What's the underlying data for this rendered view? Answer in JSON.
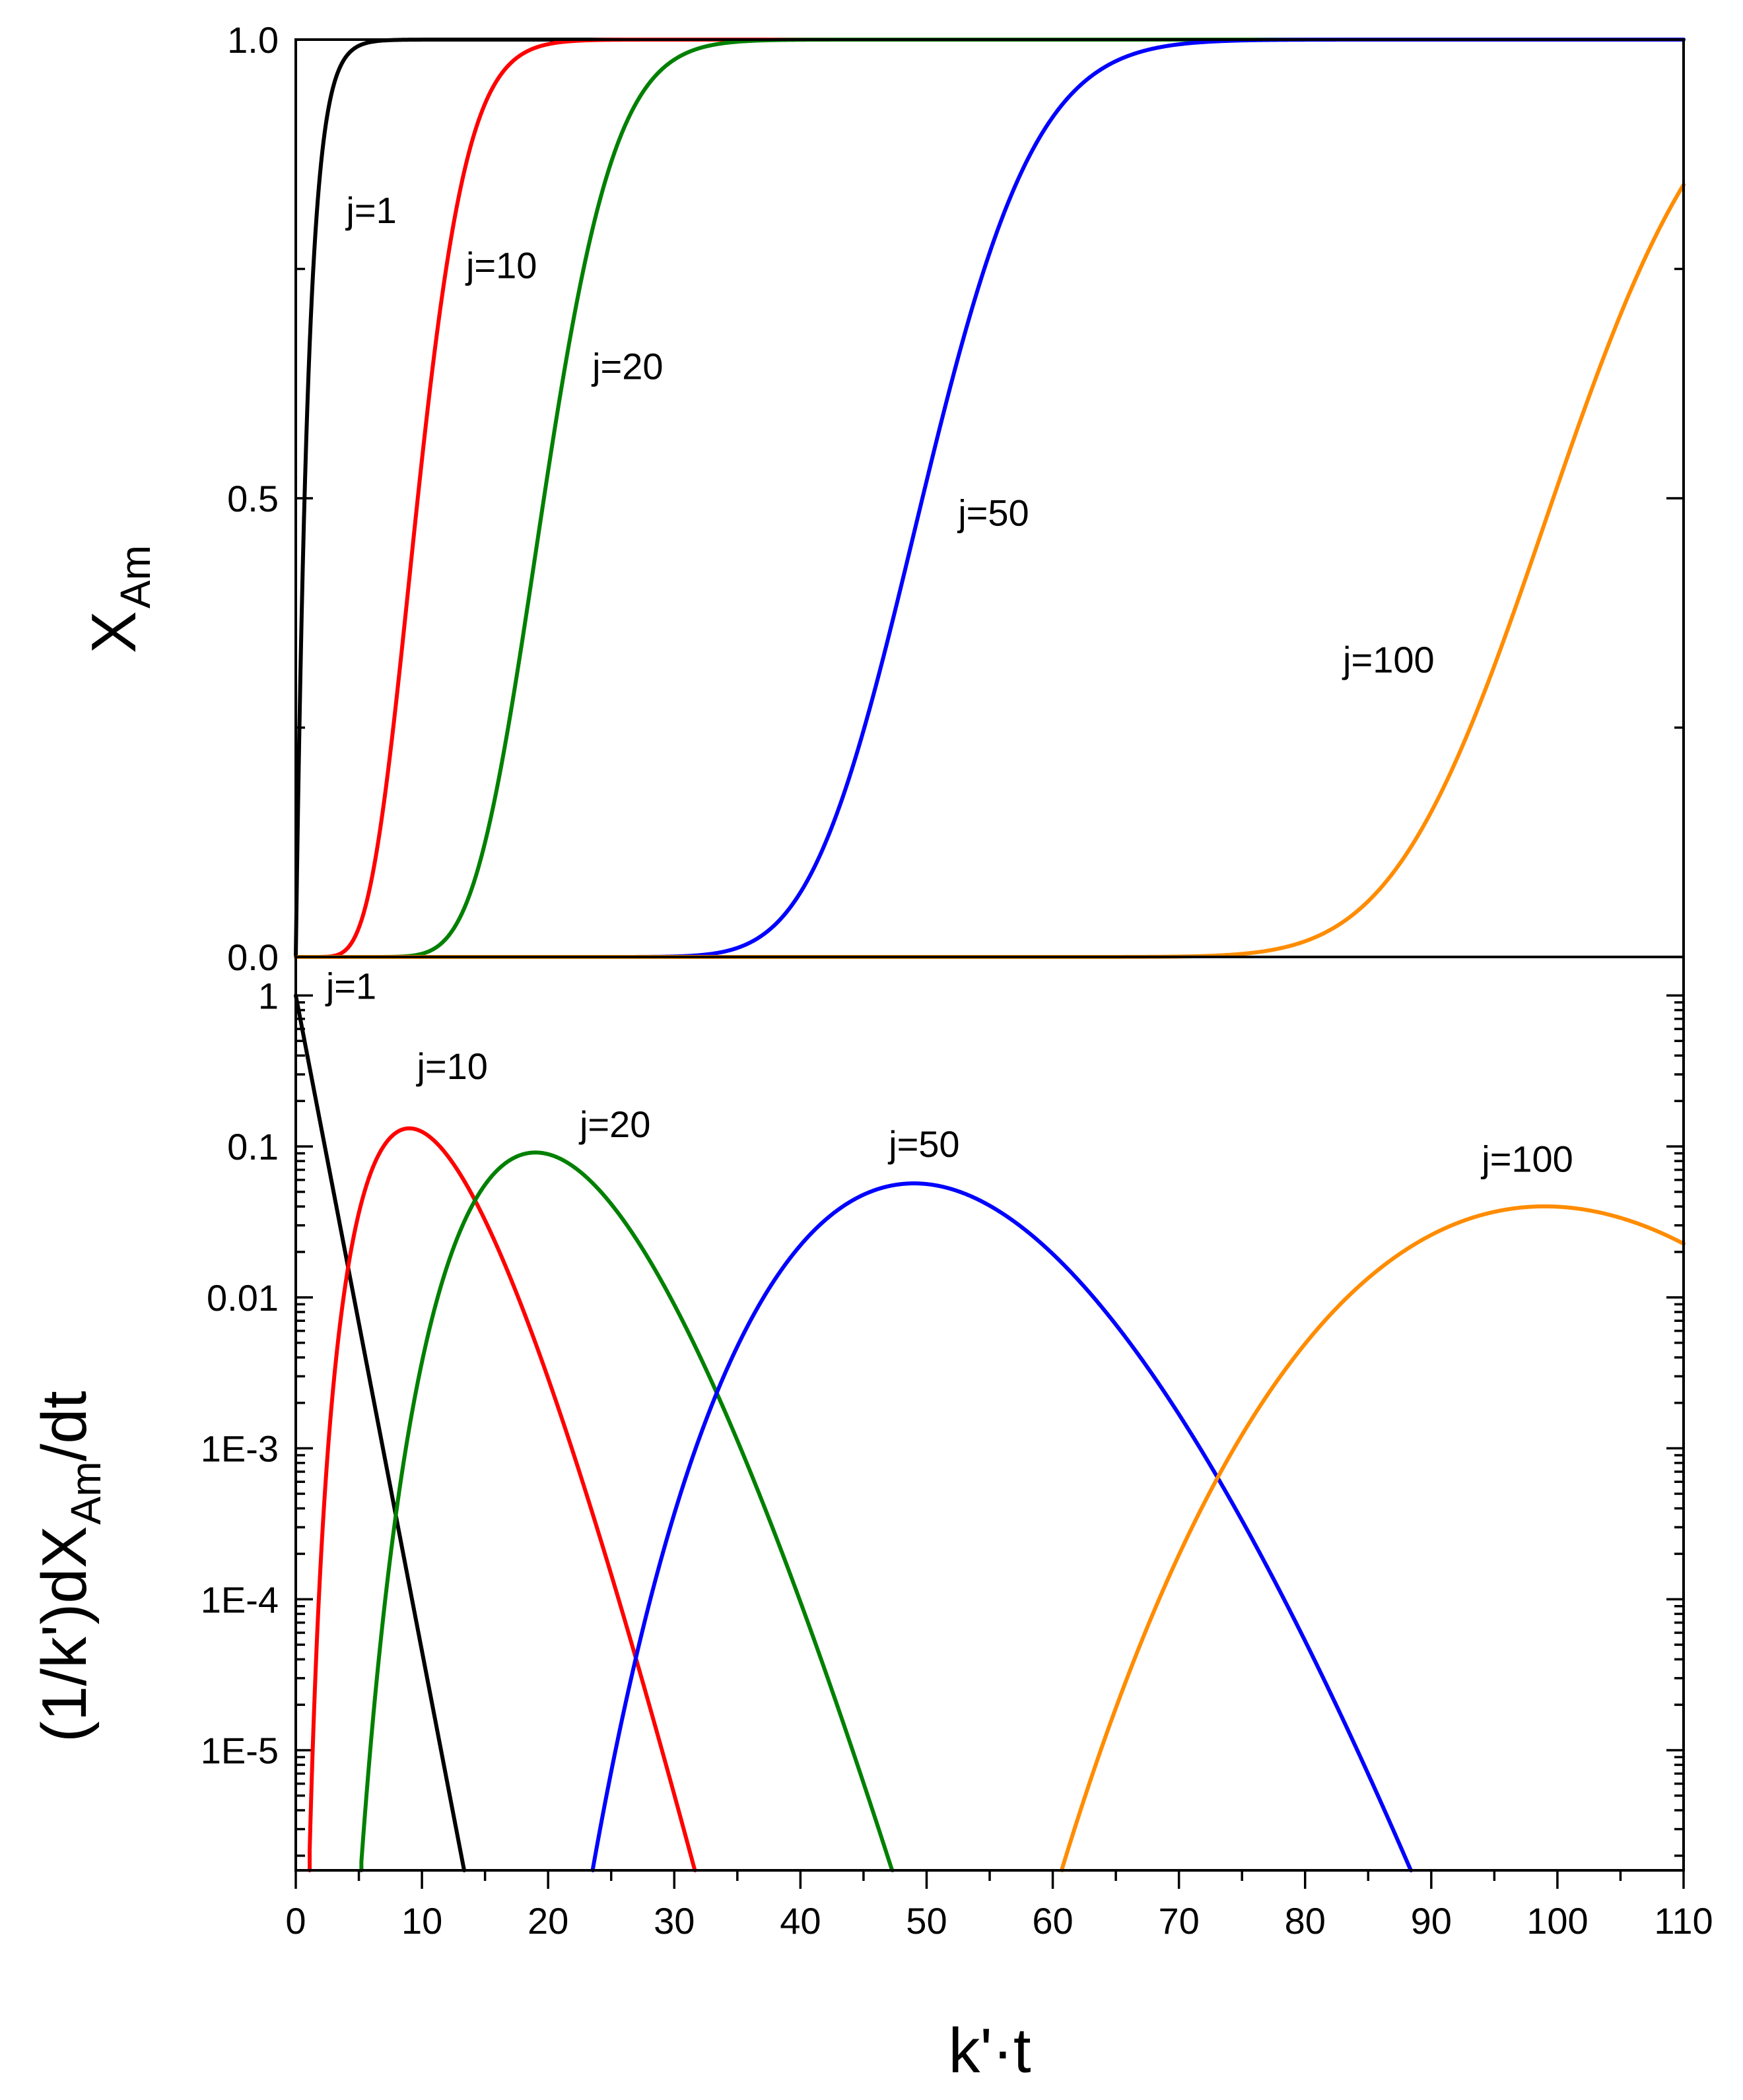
{
  "chart_data": [
    {
      "type": "line",
      "panel": "top",
      "xlabel": "k'·t",
      "ylabel": "X",
      "ylabel_sub": "Am",
      "xlim": [
        0,
        110
      ],
      "ylim": [
        0,
        1
      ],
      "yticks": [
        0,
        0.5,
        1
      ],
      "ytick_labels": [
        "0.0",
        "0.5",
        "1.0"
      ],
      "y_minor_ticks": [
        0.25,
        0.75
      ],
      "model": "cumulative Erlang (gamma) distribution with shape j",
      "series": [
        {
          "name": "j=1",
          "j": 1,
          "color": "#000000",
          "label": "j=1",
          "label_at": [
            4,
            0.8
          ]
        },
        {
          "name": "j=10",
          "j": 10,
          "color": "#ff0000",
          "label": "j=10",
          "label_at": [
            13.5,
            0.74
          ]
        },
        {
          "name": "j=20",
          "j": 20,
          "color": "#008000",
          "label": "j=20",
          "label_at": [
            23.5,
            0.63
          ]
        },
        {
          "name": "j=50",
          "j": 50,
          "color": "#0000ff",
          "label": "j=50",
          "label_at": [
            52.5,
            0.47
          ]
        },
        {
          "name": "j=100",
          "j": 100,
          "color": "#ff8c00",
          "label": "j=100",
          "label_at": [
            83,
            0.31
          ]
        }
      ]
    },
    {
      "type": "line",
      "panel": "bottom",
      "yscale": "log",
      "xlabel": "k'·t",
      "ylabel_parts": [
        "(1/k')dX",
        "Am",
        "/dt"
      ],
      "xlim": [
        0,
        110
      ],
      "ylim": [
        1.6e-06,
        1.8
      ],
      "xticks": [
        0,
        10,
        20,
        30,
        40,
        50,
        60,
        70,
        80,
        90,
        100,
        110
      ],
      "xtick_labels": [
        "0",
        "10",
        "20",
        "30",
        "40",
        "50",
        "60",
        "70",
        "80",
        "90",
        "100",
        "110"
      ],
      "yticks": [
        1e-05,
        0.0001,
        0.001,
        0.01,
        0.1,
        1
      ],
      "ytick_labels": [
        "1E-5",
        "1E-4",
        "1E-3",
        "0.01",
        "0.1",
        "1"
      ],
      "model": "Erlang (gamma) density t^(j-1) e^(-t) / (j-1)! with shape j",
      "series": [
        {
          "name": "j=1",
          "j": 1,
          "color": "#000000",
          "label": "j=1",
          "label_at": [
            2.4,
            0.95
          ]
        },
        {
          "name": "j=10",
          "j": 10,
          "color": "#ff0000",
          "label": "j=10",
          "label_at": [
            9.6,
            0.28
          ]
        },
        {
          "name": "j=20",
          "j": 20,
          "color": "#008000",
          "label": "j=20",
          "label_at": [
            22.5,
            0.115
          ]
        },
        {
          "name": "j=50",
          "j": 50,
          "color": "#0000ff",
          "label": "j=50",
          "label_at": [
            47,
            0.085
          ]
        },
        {
          "name": "j=100",
          "j": 100,
          "color": "#ff8c00",
          "label": "j=100",
          "label_at": [
            94,
            0.068
          ]
        }
      ]
    }
  ]
}
